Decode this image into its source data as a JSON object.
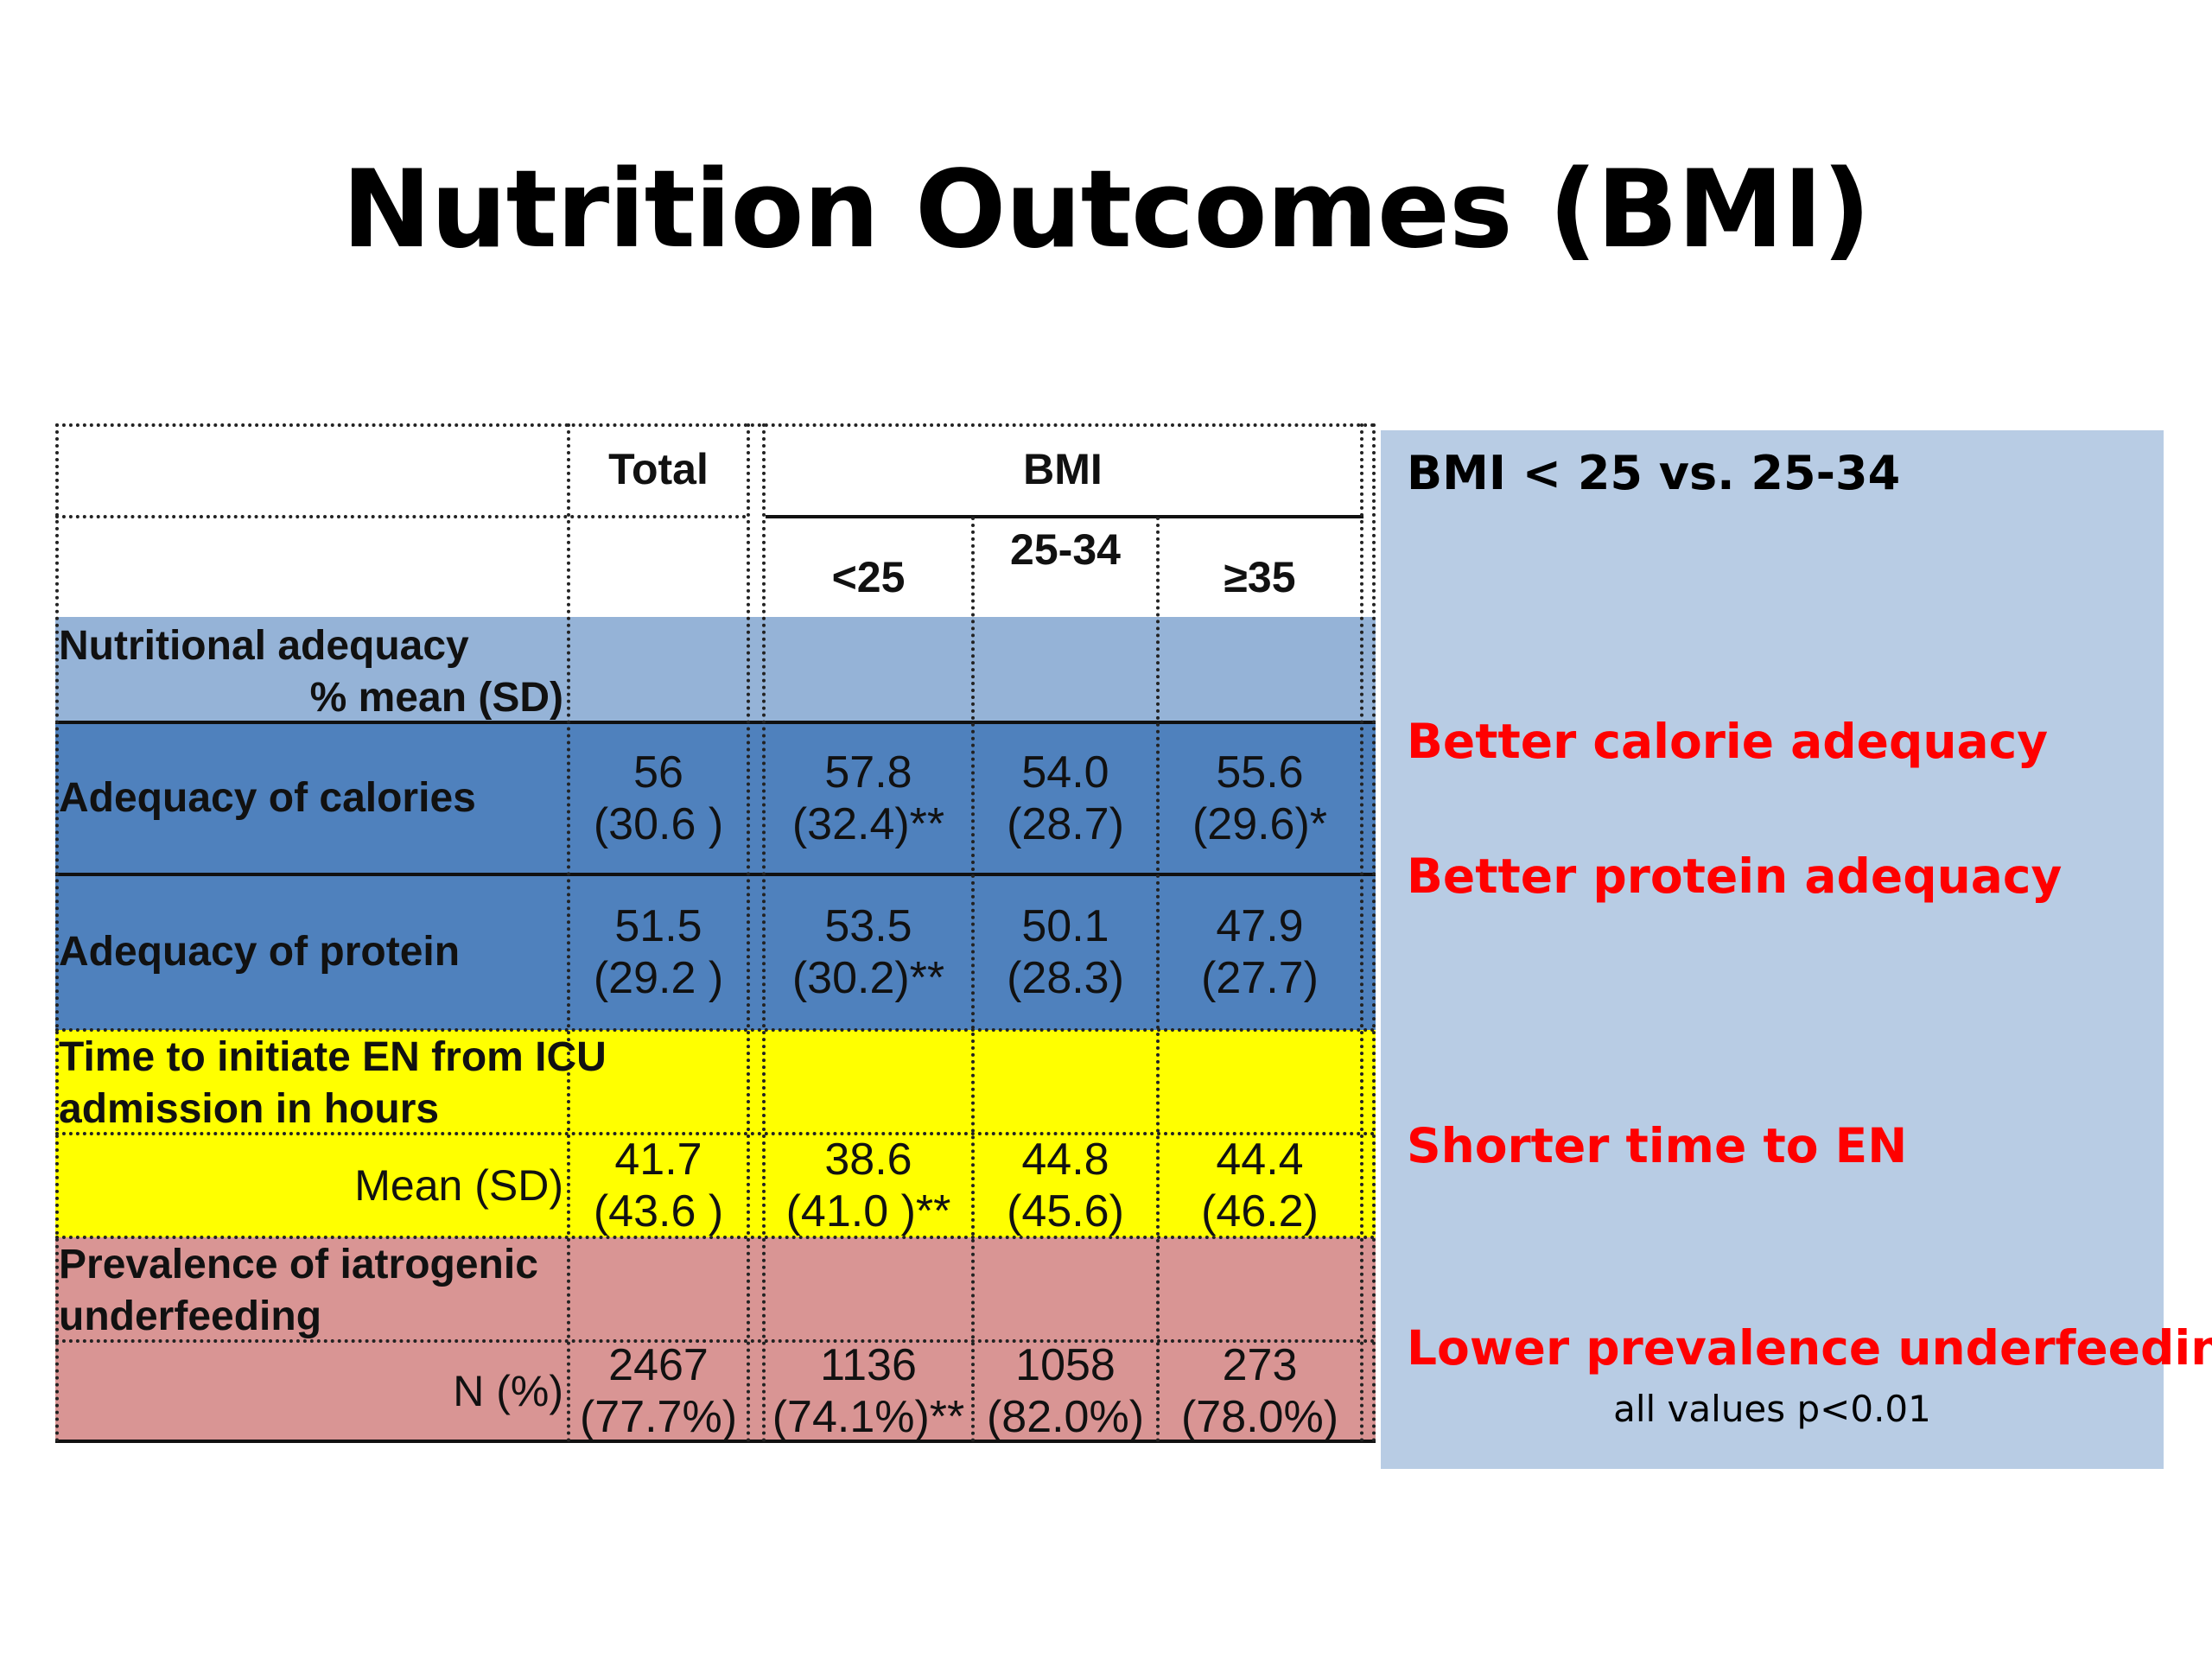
{
  "title": "Nutrition Outcomes (BMI)",
  "table": {
    "header": {
      "total": "Total",
      "bmi": "BMI",
      "bmi_lt25": "<25",
      "bmi_25_34": "25-34",
      "bmi_ge35": "≥35"
    },
    "sections": {
      "nutritional_adequacy": {
        "title_line1": "Nutritional adequacy",
        "title_line2": "% mean (SD)"
      },
      "time_to_en": {
        "title_line1": "Time to initiate EN from ICU",
        "title_line2": "admission in hours",
        "sub_label": "Mean (SD)"
      },
      "underfeeding": {
        "title_line1": "Prevalence of iatrogenic",
        "title_line2": "underfeeding",
        "sub_label": "N (%)"
      }
    },
    "rows": {
      "calories": {
        "label": "Adequacy of calories",
        "total": [
          "56",
          "(30.6 )"
        ],
        "lt25": [
          "57.8",
          "(32.4)**"
        ],
        "mid": [
          "54.0",
          "(28.7)"
        ],
        "ge35": [
          "55.6",
          "(29.6)*"
        ]
      },
      "protein": {
        "label": "Adequacy of protein",
        "total": [
          "51.5",
          "(29.2 )"
        ],
        "lt25": [
          "53.5",
          "(30.2)**"
        ],
        "mid": [
          "50.1",
          "(28.3)"
        ],
        "ge35": [
          "47.9",
          "(27.7)"
        ]
      },
      "time_en": {
        "total": [
          "41.7",
          "(43.6 )"
        ],
        "lt25": [
          "38.6",
          "(41.0 )**"
        ],
        "mid": [
          "44.8",
          "(45.6)"
        ],
        "ge35": [
          "44.4",
          "(46.2)"
        ]
      },
      "underfeeding": {
        "total": [
          "2467",
          "(77.7%)"
        ],
        "lt25": [
          "1136",
          "(74.1%)**"
        ],
        "mid": [
          "1058",
          "(82.0%)"
        ],
        "ge35": [
          "273",
          "(78.0%)"
        ]
      }
    }
  },
  "panel": {
    "heading": "BMI < 25 vs. 25-34",
    "findings": {
      "calorie": "Better calorie adequacy",
      "protein": "Better protein adequacy",
      "time": "Shorter time to EN",
      "underfeeding": "Lower prevalence underfeeding"
    },
    "footnote": "all values p<0.01"
  },
  "colors": {
    "section_light_blue": "#95b3d7",
    "row_blue": "#4f81bd",
    "yellow": "#ffff00",
    "pink": "#d99594",
    "panel_blue": "#b8cce4",
    "finding_red": "#ff0000"
  }
}
